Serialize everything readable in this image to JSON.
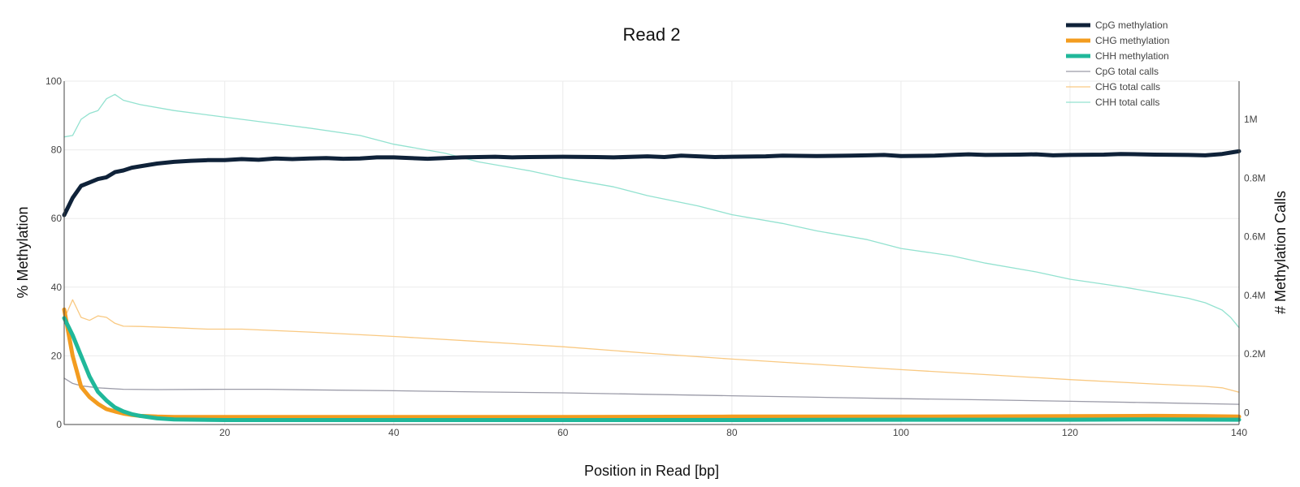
{
  "chart_data": {
    "type": "line",
    "title": "Read 2",
    "xlabel": "Position in Read [bp]",
    "ylabel": "% Methylation",
    "y2label": "# Methylation Calls",
    "xlim": [
      1,
      140
    ],
    "ylim": [
      0,
      100
    ],
    "y2lim": [
      -40000,
      1130000
    ],
    "x_ticks": [
      20,
      40,
      60,
      80,
      100,
      120,
      140
    ],
    "y_ticks": [
      0,
      20,
      40,
      60,
      80,
      100
    ],
    "y2_ticks": [
      {
        "value": 0,
        "label": "0"
      },
      {
        "value": 200000,
        "label": "0.2M"
      },
      {
        "value": 400000,
        "label": "0.4M"
      },
      {
        "value": 600000,
        "label": "0.6M"
      },
      {
        "value": 800000,
        "label": "0.8M"
      },
      {
        "value": 1000000,
        "label": "1M"
      }
    ],
    "grid": true,
    "legend_position": "top-right",
    "series": [
      {
        "name": "CpG methylation",
        "axis": "y",
        "color": "#0f2239",
        "width": 5,
        "points": [
          [
            1,
            61
          ],
          [
            2,
            66
          ],
          [
            3,
            69.5
          ],
          [
            4,
            70.5
          ],
          [
            5,
            71.5
          ],
          [
            6,
            72
          ],
          [
            7,
            73.5
          ],
          [
            8,
            74
          ],
          [
            9,
            74.8
          ],
          [
            10,
            75.2
          ],
          [
            12,
            76
          ],
          [
            14,
            76.5
          ],
          [
            16,
            76.8
          ],
          [
            18,
            77
          ],
          [
            20,
            77
          ],
          [
            22,
            77.3
          ],
          [
            24,
            77.1
          ],
          [
            26,
            77.5
          ],
          [
            28,
            77.3
          ],
          [
            30,
            77.5
          ],
          [
            32,
            77.6
          ],
          [
            34,
            77.4
          ],
          [
            36,
            77.5
          ],
          [
            38,
            77.8
          ],
          [
            40,
            77.8
          ],
          [
            42,
            77.6
          ],
          [
            44,
            77.4
          ],
          [
            46,
            77.6
          ],
          [
            48,
            77.8
          ],
          [
            50,
            77.9
          ],
          [
            52,
            78
          ],
          [
            54,
            77.8
          ],
          [
            56,
            77.9
          ],
          [
            60,
            78
          ],
          [
            64,
            77.9
          ],
          [
            66,
            77.8
          ],
          [
            70,
            78.1
          ],
          [
            72,
            77.9
          ],
          [
            74,
            78.3
          ],
          [
            76,
            78.1
          ],
          [
            78,
            77.9
          ],
          [
            80,
            78
          ],
          [
            84,
            78.1
          ],
          [
            86,
            78.3
          ],
          [
            90,
            78.2
          ],
          [
            94,
            78.3
          ],
          [
            96,
            78.4
          ],
          [
            98,
            78.5
          ],
          [
            100,
            78.2
          ],
          [
            104,
            78.3
          ],
          [
            106,
            78.5
          ],
          [
            108,
            78.7
          ],
          [
            110,
            78.5
          ],
          [
            114,
            78.6
          ],
          [
            116,
            78.7
          ],
          [
            118,
            78.4
          ],
          [
            120,
            78.5
          ],
          [
            124,
            78.6
          ],
          [
            126,
            78.8
          ],
          [
            130,
            78.6
          ],
          [
            134,
            78.5
          ],
          [
            136,
            78.4
          ],
          [
            138,
            78.8
          ],
          [
            139,
            79.2
          ],
          [
            140,
            79.6
          ]
        ]
      },
      {
        "name": "CHG methylation",
        "axis": "y",
        "color": "#f39c1f",
        "width": 5,
        "points": [
          [
            1,
            33.5
          ],
          [
            2,
            20
          ],
          [
            3,
            11
          ],
          [
            4,
            8
          ],
          [
            5,
            6
          ],
          [
            6,
            4.5
          ],
          [
            7,
            3.8
          ],
          [
            8,
            3.2
          ],
          [
            9,
            2.8
          ],
          [
            10,
            2.5
          ],
          [
            12,
            2.3
          ],
          [
            14,
            2.2
          ],
          [
            20,
            2.2
          ],
          [
            40,
            2.2
          ],
          [
            60,
            2.2
          ],
          [
            80,
            2.3
          ],
          [
            100,
            2.3
          ],
          [
            120,
            2.4
          ],
          [
            130,
            2.5
          ],
          [
            136,
            2.4
          ],
          [
            140,
            2.3
          ]
        ]
      },
      {
        "name": "CHH methylation",
        "axis": "y",
        "color": "#20b89a",
        "width": 5,
        "points": [
          [
            1,
            31
          ],
          [
            2,
            26
          ],
          [
            3,
            20
          ],
          [
            4,
            14
          ],
          [
            5,
            9.5
          ],
          [
            6,
            7
          ],
          [
            7,
            5
          ],
          [
            8,
            3.8
          ],
          [
            9,
            3
          ],
          [
            10,
            2.5
          ],
          [
            12,
            1.8
          ],
          [
            14,
            1.5
          ],
          [
            20,
            1.3
          ],
          [
            40,
            1.3
          ],
          [
            60,
            1.3
          ],
          [
            80,
            1.3
          ],
          [
            100,
            1.4
          ],
          [
            120,
            1.4
          ],
          [
            130,
            1.5
          ],
          [
            140,
            1.4
          ]
        ]
      },
      {
        "name": "CpG total calls",
        "axis": "y2",
        "color": "#9b9ba8",
        "width": 1.3,
        "points": [
          [
            1,
            118000
          ],
          [
            2,
            100000
          ],
          [
            3,
            92000
          ],
          [
            5,
            85000
          ],
          [
            8,
            80000
          ],
          [
            12,
            79000
          ],
          [
            20,
            80000
          ],
          [
            25,
            80000
          ],
          [
            30,
            78000
          ],
          [
            40,
            75000
          ],
          [
            50,
            71000
          ],
          [
            60,
            68000
          ],
          [
            70,
            63000
          ],
          [
            80,
            58000
          ],
          [
            90,
            53000
          ],
          [
            100,
            48000
          ],
          [
            110,
            44000
          ],
          [
            120,
            39000
          ],
          [
            130,
            34000
          ],
          [
            140,
            29000
          ]
        ]
      },
      {
        "name": "CHG total calls",
        "axis": "y2",
        "color": "#f9c982",
        "width": 1.3,
        "points": [
          [
            1,
            320000
          ],
          [
            2,
            385000
          ],
          [
            3,
            325000
          ],
          [
            4,
            315000
          ],
          [
            5,
            330000
          ],
          [
            6,
            325000
          ],
          [
            7,
            305000
          ],
          [
            8,
            295000
          ],
          [
            10,
            294000
          ],
          [
            14,
            290000
          ],
          [
            18,
            285000
          ],
          [
            22,
            285000
          ],
          [
            30,
            275000
          ],
          [
            40,
            260000
          ],
          [
            50,
            243000
          ],
          [
            60,
            225000
          ],
          [
            70,
            203000
          ],
          [
            80,
            183000
          ],
          [
            90,
            165000
          ],
          [
            100,
            147000
          ],
          [
            110,
            130000
          ],
          [
            120,
            113000
          ],
          [
            130,
            98000
          ],
          [
            136,
            90000
          ],
          [
            138,
            85000
          ],
          [
            140,
            70000
          ]
        ]
      },
      {
        "name": "CHH total calls",
        "axis": "y2",
        "color": "#93e2d0",
        "width": 1.3,
        "points": [
          [
            1,
            940000
          ],
          [
            2,
            945000
          ],
          [
            3,
            1000000
          ],
          [
            4,
            1020000
          ],
          [
            5,
            1030000
          ],
          [
            6,
            1070000
          ],
          [
            7,
            1085000
          ],
          [
            8,
            1065000
          ],
          [
            10,
            1050000
          ],
          [
            14,
            1030000
          ],
          [
            18,
            1015000
          ],
          [
            22,
            1000000
          ],
          [
            26,
            985000
          ],
          [
            30,
            970000
          ],
          [
            36,
            945000
          ],
          [
            40,
            915000
          ],
          [
            46,
            885000
          ],
          [
            50,
            855000
          ],
          [
            56,
            825000
          ],
          [
            60,
            800000
          ],
          [
            66,
            770000
          ],
          [
            70,
            740000
          ],
          [
            76,
            705000
          ],
          [
            80,
            675000
          ],
          [
            86,
            645000
          ],
          [
            90,
            620000
          ],
          [
            96,
            590000
          ],
          [
            100,
            560000
          ],
          [
            106,
            535000
          ],
          [
            110,
            510000
          ],
          [
            116,
            480000
          ],
          [
            120,
            455000
          ],
          [
            126,
            430000
          ],
          [
            130,
            410000
          ],
          [
            134,
            390000
          ],
          [
            136,
            375000
          ],
          [
            138,
            350000
          ],
          [
            139,
            325000
          ],
          [
            140,
            290000
          ]
        ]
      }
    ]
  }
}
